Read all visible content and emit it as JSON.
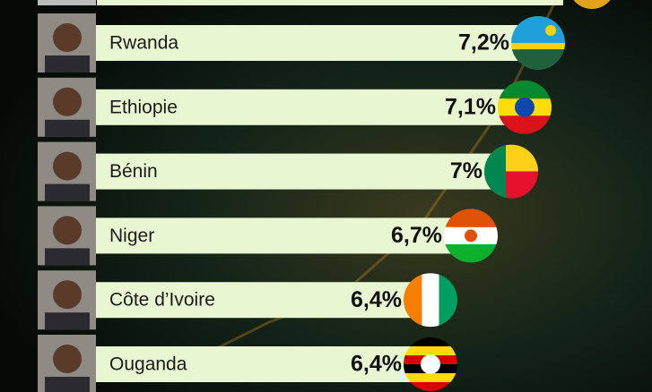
{
  "chart_data": {
    "type": "bar",
    "orientation": "horizontal",
    "categories": [
      "Rwanda",
      "Ethiopie",
      "Bénin",
      "Niger",
      "Côte d’Ivoire",
      "Ouganda"
    ],
    "values": [
      7.2,
      7.1,
      7,
      6.7,
      6.4,
      6.4
    ],
    "value_labels": [
      "7,2%",
      "7,1%",
      "7%",
      "6,7%",
      "6,4%",
      "6,4%"
    ],
    "color": "#e9f6d2",
    "xlim": [
      4,
      7.5
    ]
  }
}
